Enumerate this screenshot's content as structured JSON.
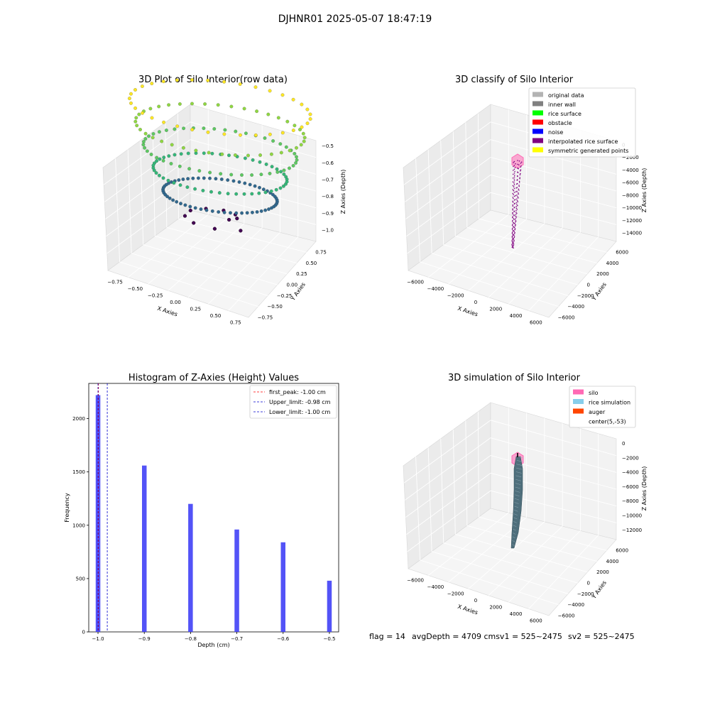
{
  "suptitle": "DJHNR01 2025-05-07 18:47:19",
  "footer": {
    "flag": "flag = 14",
    "avg": "avgDepth = 4709 cmsv1 = 525~2475",
    "sv2": "sv2 = 525~2475"
  },
  "colors": {
    "hist_bar": "#4a4af7",
    "first_peak": "#ff0000",
    "limit": "#0000cc",
    "interp": "#800080",
    "silo": "#ff69b4",
    "rice_sim": "#87ceeb",
    "auger": "#ff4500",
    "surface": "#4f6f7c"
  },
  "chart_data": [
    {
      "type": "scatter",
      "projection": "3d",
      "title": "3D Plot of Silo Interior(row data)",
      "xlabel": "X Axies",
      "ylabel": "Y Axies",
      "zlabel": "Z Axies (Depth)",
      "x_ticks": [
        "−0.75",
        "−0.50",
        "−0.25",
        "0.00",
        "0.25",
        "0.50",
        "0.75"
      ],
      "y_ticks": [
        "−0.75",
        "−0.50",
        "−0.25",
        "0.00",
        "0.25",
        "0.50",
        "0.75"
      ],
      "z_ticks": [
        "−0.5",
        "−0.6",
        "−0.7",
        "−0.8",
        "−0.9",
        "−1.0"
      ],
      "xlim": [
        -0.9,
        0.9
      ],
      "ylim": [
        -0.9,
        0.9
      ],
      "zlim": [
        -1.05,
        -0.47
      ],
      "colormap": "viridis",
      "layers": [
        {
          "z": -1.0,
          "radius": 0.45,
          "points": 70,
          "fill": true
        },
        {
          "z": -0.9,
          "radius": 0.58,
          "points": 60
        },
        {
          "z": -0.8,
          "radius": 0.68,
          "points": 50
        },
        {
          "z": -0.7,
          "radius": 0.78,
          "points": 45
        },
        {
          "z": -0.6,
          "radius": 0.86,
          "points": 40
        },
        {
          "z": -0.5,
          "radius": 0.92,
          "points": 35
        }
      ]
    },
    {
      "type": "scatter",
      "projection": "3d",
      "title": "3D classify of Silo Interior",
      "xlabel": "X Axies",
      "ylabel": "Y Axies",
      "zlabel": "Z Axies (Depth)",
      "x_ticks": [
        "−6000",
        "−4000",
        "−2000",
        "0",
        "2000",
        "4000",
        "6000"
      ],
      "y_ticks": [
        "−6000",
        "−4000",
        "−2000",
        "0",
        "2000",
        "4000",
        "6000"
      ],
      "z_ticks": [
        "0",
        "−2000",
        "−4000",
        "−6000",
        "−8000",
        "−10000",
        "−12000",
        "−14000"
      ],
      "xlim": [
        -7000,
        7000
      ],
      "ylim": [
        -7000,
        7000
      ],
      "zlim": [
        -15000,
        1000
      ],
      "legend_loc": "top-right",
      "legend": [
        {
          "label": "original data",
          "color": "#b3b3b3"
        },
        {
          "label": "inner wall",
          "color": "#808080"
        },
        {
          "label": "rice surface",
          "color": "#00ff00"
        },
        {
          "label": "obstacle",
          "color": "#ff0000"
        },
        {
          "label": "noise",
          "color": "#0000ff"
        },
        {
          "label": "interpolated rice surface",
          "color": "#800080"
        },
        {
          "label": "symmetric generated points",
          "color": "#ffff00"
        }
      ],
      "column_x": 0,
      "column_y": 0,
      "column_z_range": [
        -14000,
        0
      ]
    },
    {
      "type": "bar",
      "title": "Histogram of Z-Axies (Height) Values",
      "xlabel": "Depth (cm)",
      "ylabel": "Frequency",
      "xlim": [
        -1.02,
        -0.48
      ],
      "ylim": [
        0,
        2330
      ],
      "x_ticks": [
        -1.0,
        -0.9,
        -0.8,
        -0.7,
        -0.6,
        -0.5
      ],
      "x_tick_labels": [
        "−1.0",
        "−0.9",
        "−0.8",
        "−0.7",
        "−0.6",
        "−0.5"
      ],
      "y_ticks": [
        0,
        500,
        1000,
        1500,
        2000
      ],
      "bar_width": 0.01,
      "x": [
        -1.0,
        -0.9,
        -0.8,
        -0.7,
        -0.6,
        -0.5
      ],
      "values": [
        2220,
        1560,
        1200,
        960,
        840,
        480
      ],
      "lines": [
        {
          "label": "first_peak: -1.00 cm",
          "x": -1.0,
          "color": "#ff0000"
        },
        {
          "label": "Upper_limit: -0.98 cm",
          "x": -0.98,
          "color": "#0000cc"
        },
        {
          "label": "Lower_limit: -1.00 cm",
          "x": -1.0,
          "color": "#0000cc"
        }
      ],
      "legend_loc": "top-right"
    },
    {
      "type": "area",
      "projection": "3d",
      "title": "3D simulation of Silo Interior",
      "xlabel": "X Axies",
      "ylabel": "Y Axies",
      "zlabel": "Z Axies (Depth)",
      "x_ticks": [
        "−6000",
        "−4000",
        "−2000",
        "0",
        "2000",
        "4000",
        "6000"
      ],
      "y_ticks": [
        "−6000",
        "−4000",
        "−2000",
        "0",
        "2000",
        "4000",
        "6000"
      ],
      "z_ticks": [
        "0",
        "−2000",
        "−4000",
        "−6000",
        "−8000",
        "−10000",
        "−12000"
      ],
      "xlim": [
        -7000,
        7000
      ],
      "ylim": [
        -7000,
        7000
      ],
      "zlim": [
        -13500,
        1000
      ],
      "legend_loc": "top-right",
      "legend": [
        {
          "label": "silo",
          "color": "#ff69b4"
        },
        {
          "label": "rice simulation",
          "color": "#87ceeb"
        },
        {
          "label": "auger",
          "color": "#ff4500"
        },
        {
          "label": "center(5,-53)",
          "color": "none"
        }
      ],
      "column_z_range": [
        -13000,
        -500
      ]
    }
  ]
}
